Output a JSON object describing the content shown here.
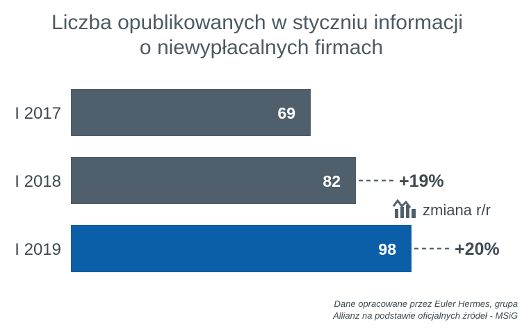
{
  "chart_data": {
    "type": "bar",
    "orientation": "horizontal",
    "title_lines": [
      "Liczba opublikowanych w styczniu informacji",
      "o niewypłacalnych firmach"
    ],
    "categories": [
      "I 2017",
      "I 2018",
      "I 2019"
    ],
    "values": [
      69,
      82,
      98
    ],
    "value_labels": [
      "69",
      "82",
      "98"
    ],
    "bar_colors": [
      "#4f5f6b",
      "#4f5f6b",
      "#0a5fa8"
    ],
    "xlim": [
      0,
      100
    ],
    "changes": [
      null,
      "+19%",
      "+20%"
    ],
    "legend_label": "zmiana r/r",
    "legend_icon": "yoy-change-icon",
    "grid": false
  },
  "source_lines": [
    "Dane opracowane przez Euler Hermes, grupa",
    "Allianz na podstawie oficjalnych źródeł  - MSiG"
  ],
  "colors": {
    "text": "#3f4a52",
    "title": "#4d5a63",
    "dash": "#5a6770"
  }
}
